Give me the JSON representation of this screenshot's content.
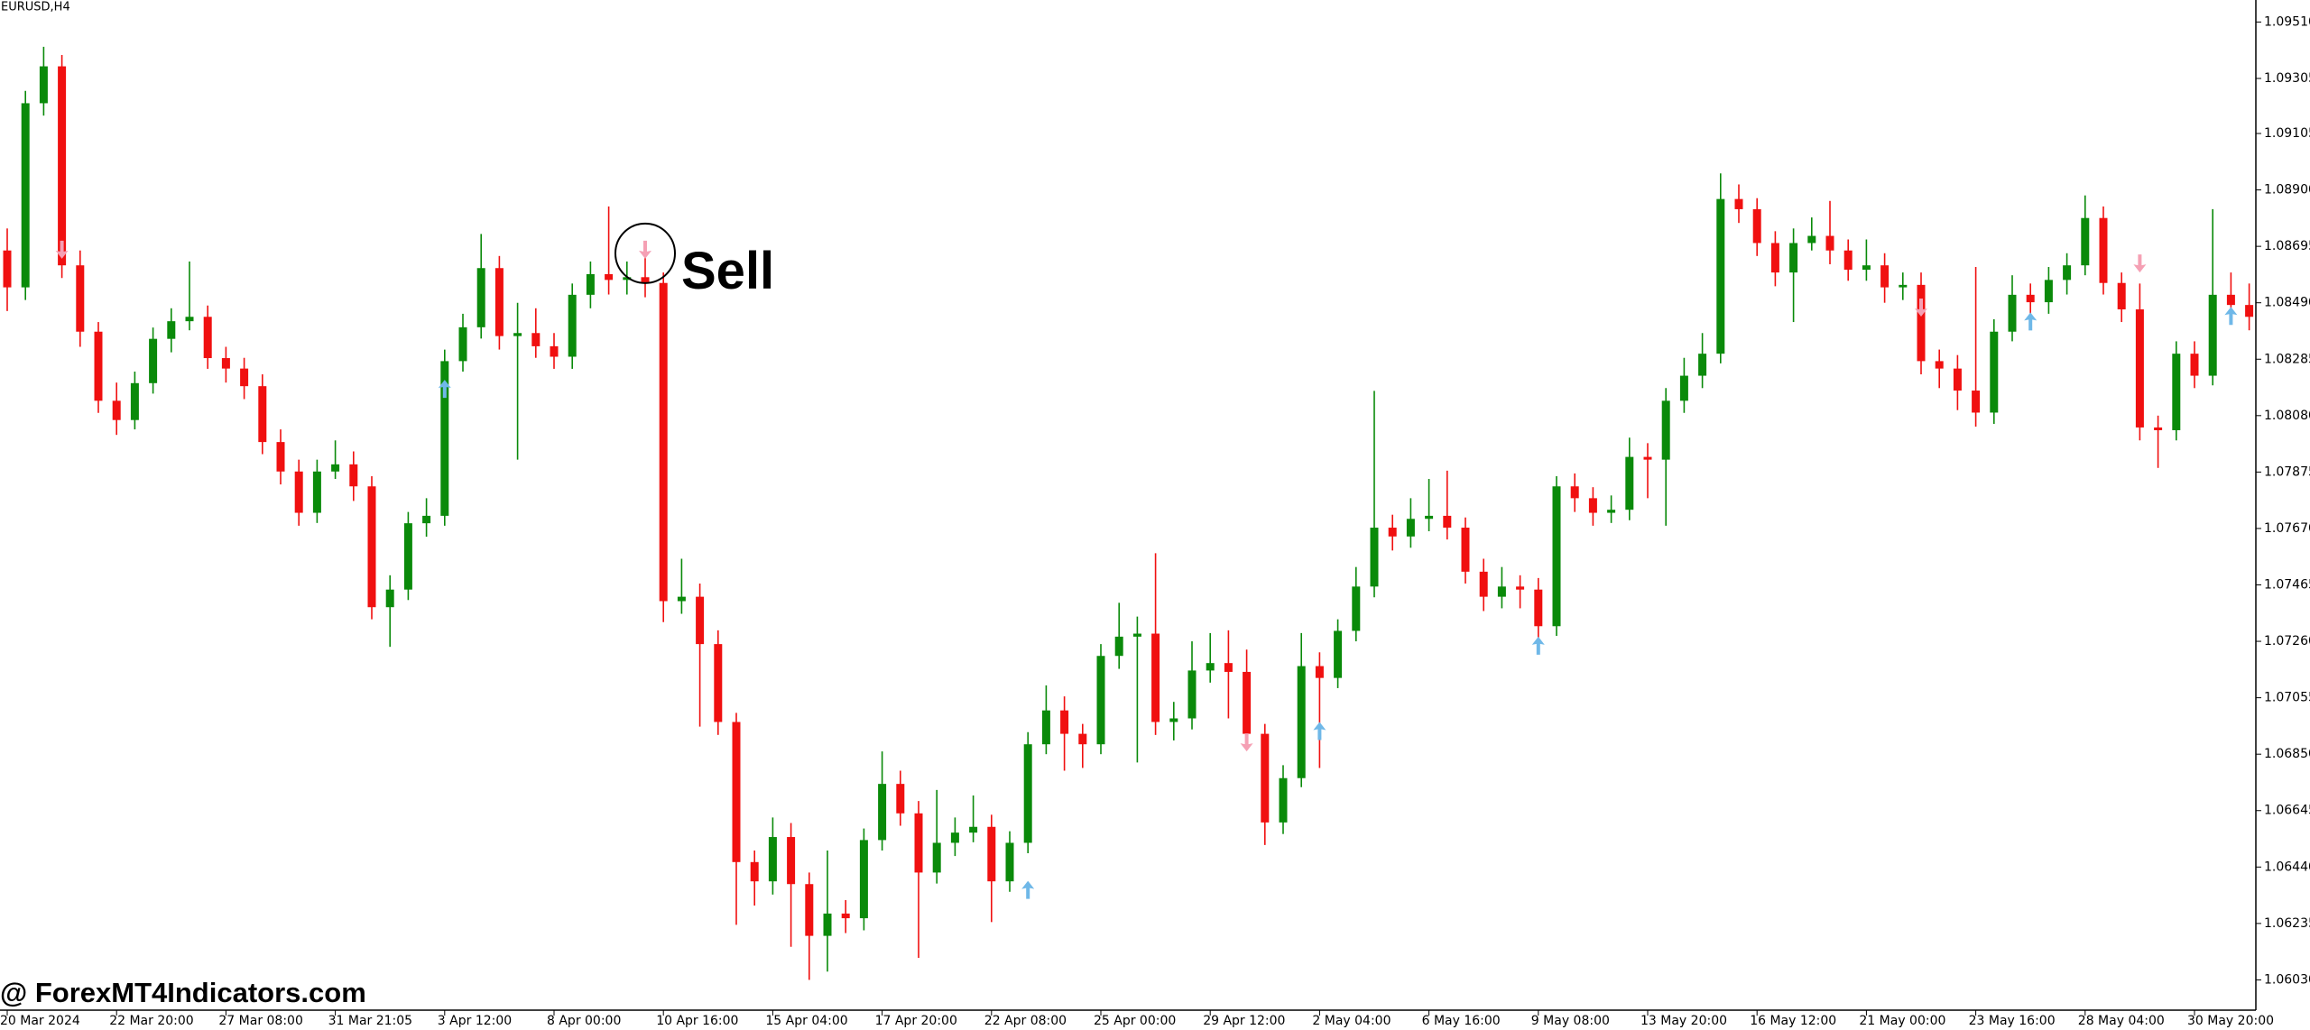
{
  "chart_data": {
    "type": "candlestick",
    "title": "EURUSD,H4",
    "watermark": "@ ForexMT4Indicators.com",
    "up_color": "#0a8a0a",
    "down_color": "#f01010",
    "buy_color": "#6fb8e8",
    "sell_color": "#f5a0b4",
    "categories": [
      "20 Mar 2024",
      null,
      null,
      null,
      null,
      null,
      "22 Mar 20:00",
      null,
      null,
      null,
      null,
      null,
      "27 Mar 08:00",
      null,
      null,
      null,
      null,
      null,
      "31 Mar 21:05",
      null,
      null,
      null,
      null,
      null,
      "3 Apr 12:00",
      null,
      null,
      null,
      null,
      null,
      "8 Apr 00:00",
      null,
      null,
      null,
      null,
      null,
      "10 Apr 16:00",
      null,
      null,
      null,
      null,
      null,
      "15 Apr 04:00",
      null,
      null,
      null,
      null,
      null,
      "17 Apr 20:00",
      null,
      null,
      null,
      null,
      null,
      "22 Apr 08:00",
      null,
      null,
      null,
      null,
      null,
      "25 Apr 00:00",
      null,
      null,
      null,
      null,
      null,
      "29 Apr 12:00",
      null,
      null,
      null,
      null,
      null,
      "2 May 04:00",
      null,
      null,
      null,
      null,
      null,
      "6 May 16:00",
      null,
      null,
      null,
      null,
      null,
      "9 May 08:00",
      null,
      null,
      null,
      null,
      null,
      "13 May 20:00",
      null,
      null,
      null,
      null,
      null,
      "16 May 12:00",
      null,
      null,
      null,
      null,
      null,
      "21 May 00:00",
      null,
      null,
      null,
      null,
      null,
      "23 May 16:00",
      null,
      null,
      null,
      null,
      null,
      "28 May 04:00",
      null,
      null,
      null,
      null,
      null,
      "30 May 20:00",
      null,
      null,
      null
    ],
    "open": [
      1.0868,
      1.08546,
      1.09215,
      1.09349,
      1.08626,
      1.08385,
      1.08134,
      1.08064,
      1.08198,
      1.08359,
      1.08423,
      1.08439,
      1.08289,
      1.08251,
      1.08187,
      1.07984,
      1.07877,
      1.07727,
      1.07877,
      1.07903,
      1.07823,
      1.07384,
      1.07448,
      1.07689,
      1.07716,
      1.08278,
      1.08401,
      1.08616,
      1.08369,
      1.0838,
      1.08332,
      1.08294,
      1.08519,
      1.08594,
      1.08573,
      1.08583,
      1.08562,
      1.07406,
      1.07422,
      1.0725,
      1.06967,
      1.06458,
      1.06388,
      1.06549,
      1.06378,
      1.0619,
      1.06271,
      1.06254,
      1.06538,
      1.06742,
      1.06635,
      1.0642,
      1.06528,
      1.06565,
      1.06586,
      1.06388,
      1.06528,
      1.06886,
      1.07009,
      1.06924,
      1.06886,
      1.07207,
      1.07277,
      1.07288,
      1.06967,
      1.0698,
      1.07154,
      1.07181,
      1.07149,
      1.06924,
      1.06602,
      1.06763,
      1.0717,
      1.07127,
      1.07298,
      1.07459,
      1.07673,
      1.07641,
      1.07705,
      1.07716,
      1.07673,
      1.07513,
      1.07422,
      1.07459,
      1.07448,
      1.07315,
      1.07823,
      1.0778,
      1.07727,
      1.07738,
      1.0793,
      1.0792,
      1.08134,
      1.08225,
      1.08305,
      1.08867,
      1.0883,
      1.08707,
      1.086,
      1.08707,
      1.08733,
      1.0868,
      1.0861,
      1.08626,
      1.08546,
      1.08555,
      1.08278,
      1.08251,
      1.08171,
      1.08091,
      1.08385,
      1.08519,
      1.08492,
      1.08573,
      1.08626,
      1.08798,
      1.08562,
      1.08466,
      1.08037,
      1.08027,
      1.08305,
      1.08225,
      1.08519,
      1.08482
    ],
    "high": [
      1.0876,
      1.0926,
      1.0942,
      1.0939,
      1.0868,
      1.0842,
      1.082,
      1.0824,
      1.084,
      1.0847,
      1.0864,
      1.0848,
      1.0833,
      1.0829,
      1.0823,
      1.0803,
      1.0792,
      1.0792,
      1.0799,
      1.0795,
      1.0786,
      1.075,
      1.0773,
      1.0778,
      1.0832,
      1.0845,
      1.0874,
      1.0866,
      1.0849,
      1.0847,
      1.0838,
      1.0856,
      1.0864,
      1.0884,
      1.0864,
      1.0868,
      1.086,
      1.0756,
      1.0747,
      1.073,
      1.07,
      1.065,
      1.0662,
      1.066,
      1.0642,
      1.065,
      1.0632,
      1.0658,
      1.0686,
      1.0679,
      1.0668,
      1.0672,
      1.0662,
      1.067,
      1.0663,
      1.0657,
      1.0693,
      1.071,
      1.0706,
      1.0696,
      1.0725,
      1.074,
      1.0735,
      1.0758,
      1.0704,
      1.0726,
      1.0729,
      1.073,
      1.0723,
      1.0696,
      1.0681,
      1.0729,
      1.0722,
      1.0734,
      1.0753,
      1.0817,
      1.0772,
      1.0778,
      1.0785,
      1.0788,
      1.0771,
      1.0756,
      1.0753,
      1.075,
      1.0749,
      1.0786,
      1.0787,
      1.0782,
      1.0779,
      1.08,
      1.0798,
      1.0818,
      1.0829,
      1.0838,
      1.0896,
      1.0892,
      1.0887,
      1.0875,
      1.0876,
      1.088,
      1.0886,
      1.0872,
      1.0872,
      1.0867,
      1.086,
      1.086,
      1.0832,
      1.083,
      1.0862,
      1.0843,
      1.0859,
      1.0856,
      1.0862,
      1.0867,
      1.0888,
      1.0884,
      1.086,
      1.0856,
      1.0808,
      1.0835,
      1.0835,
      1.0883,
      1.086,
      1.0856
    ],
    "low": [
      1.0846,
      1.085,
      1.0917,
      1.0858,
      1.0833,
      1.0809,
      1.0801,
      1.0803,
      1.0816,
      1.0831,
      1.0839,
      1.0825,
      1.082,
      1.0814,
      1.0794,
      1.0783,
      1.0768,
      1.0769,
      1.0785,
      1.0777,
      1.0734,
      1.0724,
      1.0741,
      1.0764,
      1.0768,
      1.0824,
      1.0836,
      1.0832,
      1.0792,
      1.0829,
      1.0825,
      1.0825,
      1.0847,
      1.0852,
      1.0852,
      1.0851,
      1.0733,
      1.0736,
      1.0695,
      1.0692,
      1.0623,
      1.063,
      1.0634,
      1.0615,
      1.0603,
      1.0606,
      1.062,
      1.0621,
      1.065,
      1.0659,
      1.0611,
      1.0638,
      1.0648,
      1.0653,
      1.0624,
      1.0635,
      1.0649,
      1.0685,
      1.0679,
      1.068,
      1.0685,
      1.0716,
      1.0682,
      1.0692,
      1.069,
      1.0694,
      1.0711,
      1.0698,
      1.0688,
      1.0652,
      1.0656,
      1.0673,
      1.068,
      1.0709,
      1.0726,
      1.0742,
      1.0759,
      1.076,
      1.0766,
      1.0763,
      1.0747,
      1.0737,
      1.0738,
      1.0738,
      1.0725,
      1.0728,
      1.0773,
      1.0768,
      1.0769,
      1.077,
      1.0778,
      1.0768,
      1.0809,
      1.0818,
      1.0827,
      1.0878,
      1.0866,
      1.0855,
      1.0842,
      1.0868,
      1.0863,
      1.0857,
      1.0857,
      1.0849,
      1.085,
      1.0823,
      1.0818,
      1.081,
      1.0804,
      1.0805,
      1.0835,
      1.0844,
      1.0845,
      1.0852,
      1.0859,
      1.0852,
      1.0842,
      1.0799,
      1.0789,
      1.0799,
      1.0818,
      1.0819,
      1.0844,
      1.0839
    ],
    "close": [
      1.08546,
      1.09215,
      1.09349,
      1.08626,
      1.08385,
      1.08134,
      1.08064,
      1.08198,
      1.08359,
      1.08423,
      1.08439,
      1.08289,
      1.08251,
      1.08187,
      1.07984,
      1.07877,
      1.07727,
      1.07877,
      1.07903,
      1.07823,
      1.07384,
      1.07448,
      1.07689,
      1.07716,
      1.08278,
      1.08401,
      1.08616,
      1.08369,
      1.0838,
      1.08332,
      1.08294,
      1.08519,
      1.08594,
      1.08573,
      1.08583,
      1.08562,
      1.07406,
      1.07422,
      1.0725,
      1.06967,
      1.06458,
      1.06388,
      1.06549,
      1.06378,
      1.0619,
      1.06271,
      1.06254,
      1.06538,
      1.06742,
      1.06635,
      1.0642,
      1.06528,
      1.06565,
      1.06586,
      1.06388,
      1.06528,
      1.06886,
      1.07009,
      1.06924,
      1.06886,
      1.07207,
      1.07277,
      1.07288,
      1.06967,
      1.0698,
      1.07154,
      1.07181,
      1.07149,
      1.06924,
      1.06602,
      1.06763,
      1.0717,
      1.07127,
      1.07298,
      1.07459,
      1.07673,
      1.07641,
      1.07705,
      1.07716,
      1.07673,
      1.07513,
      1.07422,
      1.07459,
      1.07448,
      1.07315,
      1.07823,
      1.0778,
      1.07727,
      1.07738,
      1.0793,
      1.0792,
      1.08134,
      1.08225,
      1.08305,
      1.08867,
      1.0883,
      1.08707,
      1.086,
      1.08707,
      1.08733,
      1.0868,
      1.0861,
      1.08626,
      1.08546,
      1.08555,
      1.08278,
      1.08251,
      1.08171,
      1.08091,
      1.08385,
      1.08519,
      1.08492,
      1.08573,
      1.08626,
      1.08798,
      1.08562,
      1.08466,
      1.08037,
      1.08027,
      1.08305,
      1.08225,
      1.08519,
      1.08482,
      1.08439
    ],
    "buy_signals": [
      {
        "index": 24,
        "value": 1.0821
      },
      {
        "index": 56,
        "value": 1.0639
      },
      {
        "index": 72,
        "value": 1.06967
      },
      {
        "index": 84,
        "value": 1.07277
      },
      {
        "index": 111,
        "value": 1.08455
      },
      {
        "index": 122,
        "value": 1.08475
      }
    ],
    "sell_signals": [
      {
        "index": 3,
        "value": 1.0865
      },
      {
        "index": 35,
        "value": 1.0865,
        "label": "Sell"
      },
      {
        "index": 68,
        "value": 1.0686
      },
      {
        "index": 105,
        "value": 1.0844
      },
      {
        "index": 117,
        "value": 1.086
      }
    ],
    "ylim": [
      1.0592,
      1.0959
    ],
    "yticks": [
      {
        "value": 1.0951,
        "label": "1.09510"
      },
      1.09305,
      1.09105,
      {
        "value": 1.089,
        "label": "1.08900"
      },
      1.08695,
      {
        "value": 1.0849,
        "label": "1.08490"
      },
      1.08285,
      {
        "value": 1.0808,
        "label": "1.08080"
      },
      1.07875,
      {
        "value": 1.0767,
        "label": "1.07670"
      },
      1.07465,
      {
        "value": 1.0726,
        "label": "1.07260"
      },
      1.07055,
      {
        "value": 1.0685,
        "label": "1.06850"
      },
      1.06645,
      {
        "value": 1.0644,
        "label": "1.06440"
      },
      1.06235,
      {
        "value": 1.0603,
        "label": "1.06030"
      }
    ],
    "grid": false
  }
}
